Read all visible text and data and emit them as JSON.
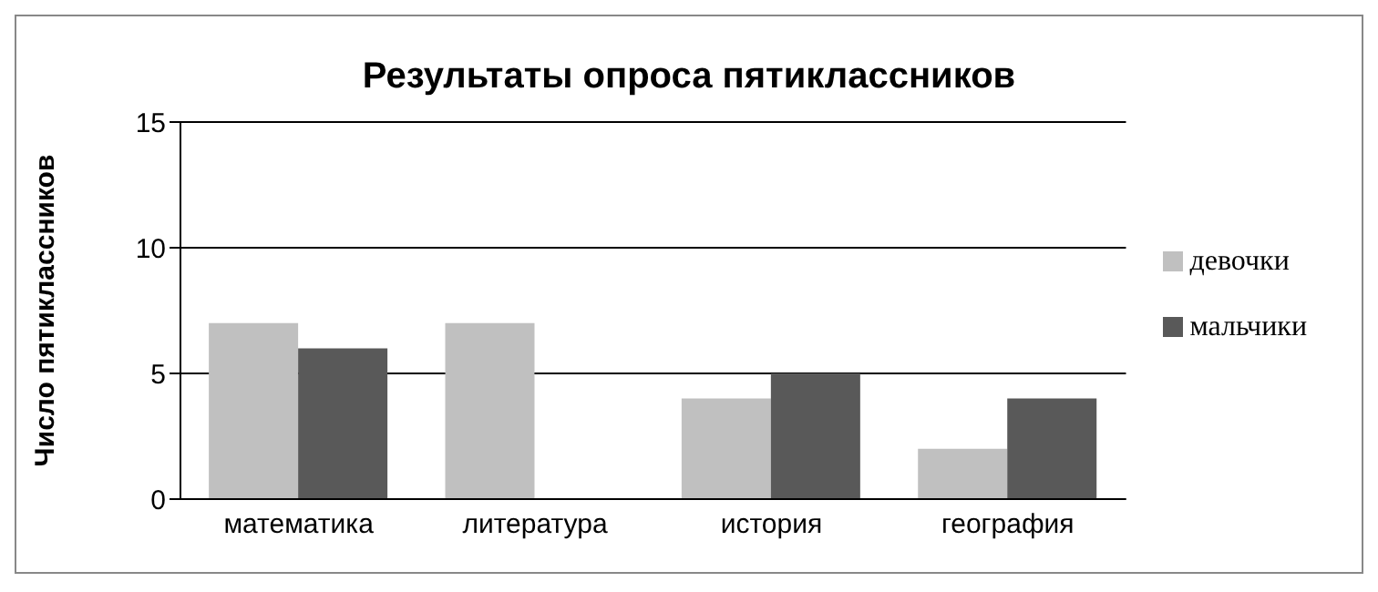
{
  "chart_data": {
    "type": "bar",
    "title": "Результаты опроса пятиклассников",
    "ylabel": "Число пятиклассников",
    "categories": [
      "математика",
      "литература",
      "история",
      "география"
    ],
    "series": [
      {
        "name": "девочки",
        "color": "#c0c0c0",
        "values": [
          7,
          7,
          4,
          2
        ]
      },
      {
        "name": "мальчики",
        "color": "#595959",
        "values": [
          6,
          0,
          5,
          4
        ]
      }
    ],
    "ylim": [
      0,
      15
    ],
    "yticks": [
      0,
      5,
      10,
      15
    ],
    "grid": "y",
    "legend": "right"
  }
}
